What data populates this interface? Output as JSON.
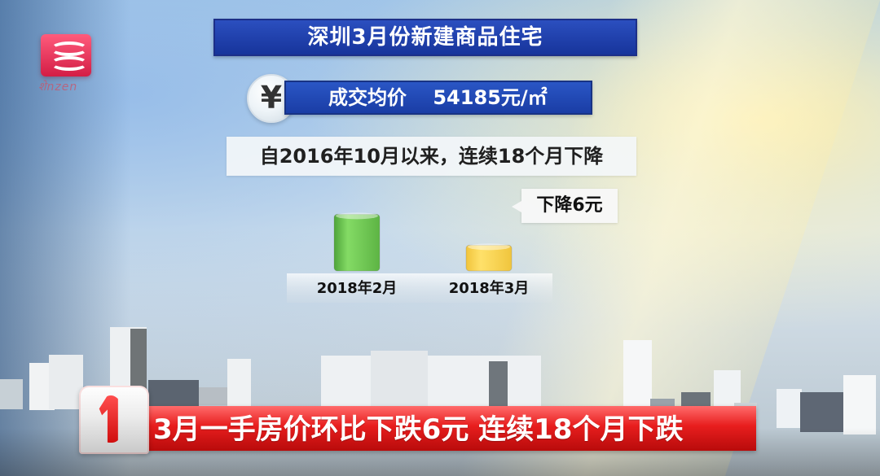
{
  "logo": {
    "caption": "शेnzen"
  },
  "headline": {
    "title": "深圳3月份新建商品住宅"
  },
  "price": {
    "label": "成交均价",
    "value": "54185元/㎡"
  },
  "badge": {
    "symbol": "¥"
  },
  "summary": {
    "text": "自2016年10月以来，连续18个月下降"
  },
  "callout": {
    "text": "下降6元"
  },
  "ticker": {
    "number": "1",
    "text": "3月一手房价环比下跌6元 连续18个月下跌"
  },
  "chart_data": {
    "type": "bar",
    "categories": [
      "2018年2月",
      "2018年3月"
    ],
    "values": [
      54191,
      54185
    ],
    "ylim": [
      54180,
      54195
    ],
    "annotations": [
      "下降6元"
    ],
    "colors": [
      "#6fcf4b",
      "#ffd54a"
    ]
  }
}
